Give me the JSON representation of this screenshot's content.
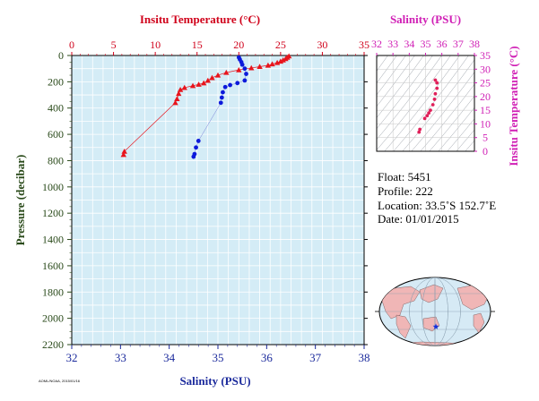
{
  "chart_data": [
    {
      "type": "scatter",
      "title": "",
      "top_axis_label": "Insitu Temperature (°C)",
      "top_ticks": [
        "0",
        "5",
        "10",
        "15",
        "20",
        "25",
        "30",
        "35"
      ],
      "xlim_top": [
        0,
        35
      ],
      "bottom_axis_label": "Salinity (PSU)",
      "bottom_ticks": [
        "32",
        "33",
        "34",
        "35",
        "36",
        "37",
        "38"
      ],
      "xlim_bottom": [
        32,
        38
      ],
      "ylabel": "Pressure (decibar)",
      "y_ticks": [
        "0",
        "200",
        "400",
        "600",
        "800",
        "1000",
        "1200",
        "1400",
        "1600",
        "1800",
        "2000",
        "2200"
      ],
      "ylim": [
        0,
        2200
      ],
      "y_inverted": true,
      "series": [
        {
          "color": "#e8141c",
          "axis": "top",
          "marker": "triangle",
          "points": [
            [
              26.0,
              5
            ],
            [
              25.8,
              15
            ],
            [
              25.6,
              25
            ],
            [
              25.3,
              35
            ],
            [
              25.0,
              45
            ],
            [
              24.6,
              55
            ],
            [
              24.0,
              65
            ],
            [
              23.5,
              75
            ],
            [
              22.5,
              85
            ],
            [
              21.5,
              95
            ],
            [
              20.0,
              110
            ],
            [
              18.5,
              130
            ],
            [
              17.5,
              150
            ],
            [
              16.8,
              170
            ],
            [
              16.3,
              190
            ],
            [
              15.8,
              210
            ],
            [
              15.2,
              220
            ],
            [
              14.5,
              230
            ],
            [
              13.5,
              245
            ],
            [
              13.0,
              260
            ],
            [
              12.8,
              290
            ],
            [
              12.6,
              330
            ],
            [
              12.4,
              360
            ],
            [
              6.3,
              730
            ],
            [
              6.2,
              755
            ]
          ]
        },
        {
          "color": "#0d1adb",
          "axis": "bottom",
          "marker": "circle",
          "points": [
            [
              35.43,
              15
            ],
            [
              35.45,
              30
            ],
            [
              35.48,
              50
            ],
            [
              35.5,
              70
            ],
            [
              35.55,
              100
            ],
            [
              35.58,
              140
            ],
            [
              35.55,
              190
            ],
            [
              35.4,
              210
            ],
            [
              35.25,
              225
            ],
            [
              35.15,
              240
            ],
            [
              35.1,
              280
            ],
            [
              35.08,
              320
            ],
            [
              35.06,
              360
            ],
            [
              34.6,
              650
            ],
            [
              34.55,
              700
            ],
            [
              34.52,
              750
            ],
            [
              34.5,
              770
            ]
          ]
        }
      ],
      "grid": true
    },
    {
      "type": "scatter",
      "title": "Salinity (PSU)",
      "xlabel": "Salinity (PSU)",
      "x_ticks": [
        "32",
        "33",
        "34",
        "35",
        "36",
        "37",
        "38"
      ],
      "xlim": [
        32,
        38
      ],
      "ylabel": "Insitu Temperature (°C)",
      "y_ticks": [
        "0",
        "5",
        "10",
        "15",
        "20",
        "25",
        "30",
        "35"
      ],
      "ylim": [
        0,
        35
      ],
      "series": [
        {
          "color": "#e0205a",
          "marker": "point",
          "points": [
            [
              35.6,
              26
            ],
            [
              35.7,
              25
            ],
            [
              35.7,
              23
            ],
            [
              35.6,
              21
            ],
            [
              35.55,
              19
            ],
            [
              35.45,
              17
            ],
            [
              35.3,
              15
            ],
            [
              35.2,
              14
            ],
            [
              35.1,
              13
            ],
            [
              34.95,
              12
            ],
            [
              34.65,
              8
            ],
            [
              34.6,
              7
            ]
          ]
        }
      ],
      "density_contours": true
    }
  ],
  "info": {
    "float": "Float:  5451",
    "profile": "Profile:  222",
    "location": "Location:  33.5˚S  152.7˚E",
    "date": "Date:  01/01/2015"
  },
  "footer_id": "AOML/NOAA, 2015/01/16",
  "colors": {
    "top_axis": "#d0021b",
    "inset_axis": "#d01fb5",
    "left_axis": "#2a4a1a",
    "bottom_axis": "#1b2a9c",
    "plot_bg": "#d4ecf6",
    "temperature_series": "#e8141c",
    "salinity_series": "#0d1adb"
  },
  "map": {
    "marker": "float-location-star"
  }
}
